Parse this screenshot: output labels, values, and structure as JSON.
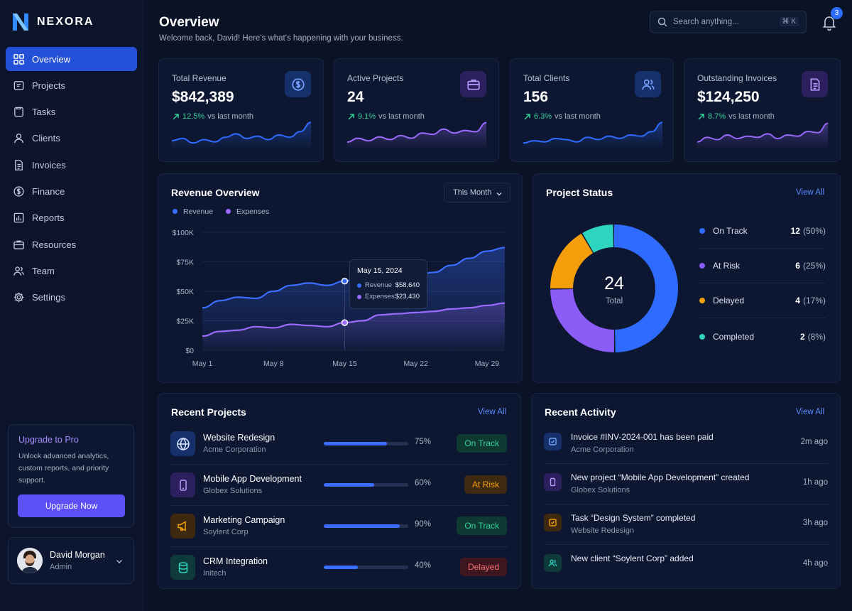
{
  "brand": {
    "name": "NEXORA"
  },
  "nav": [
    {
      "label": "Overview",
      "icon": "grid-icon",
      "active": true
    },
    {
      "label": "Projects",
      "icon": "folder-icon"
    },
    {
      "label": "Tasks",
      "icon": "tasks-icon"
    },
    {
      "label": "Clients",
      "icon": "user-icon"
    },
    {
      "label": "Invoices",
      "icon": "document-icon"
    },
    {
      "label": "Finance",
      "icon": "dollar-icon"
    },
    {
      "label": "Reports",
      "icon": "bar-chart-icon"
    },
    {
      "label": "Resources",
      "icon": "briefcase-icon"
    },
    {
      "label": "Team",
      "icon": "users-icon"
    },
    {
      "label": "Settings",
      "icon": "gear-icon"
    }
  ],
  "upgrade": {
    "title": "Upgrade to Pro",
    "text": "Unlock advanced analytics, custom reports, and priority support.",
    "button": "Upgrade Now"
  },
  "user": {
    "name": "David Morgan",
    "role": "Admin"
  },
  "header": {
    "title": "Overview",
    "subtitle": "Welcome back, David! Here's what's happening with your business.",
    "search_placeholder": "Search anything...",
    "search_shortcut": "⌘ K",
    "notification_count": "3"
  },
  "stats": [
    {
      "label": "Total Revenue",
      "value": "$842,389",
      "delta": "12.5%",
      "delta_text": "vs last month",
      "icon": "dollar-icon",
      "color": "#2f6bff",
      "spark": [
        14,
        16,
        12,
        15,
        13,
        17,
        20,
        16,
        18,
        15,
        19,
        17,
        22,
        30
      ]
    },
    {
      "label": "Active Projects",
      "value": "24",
      "delta": "9.1%",
      "delta_text": "vs last month",
      "icon": "briefcase-icon",
      "color": "#9b6bff",
      "spark": [
        12,
        15,
        13,
        16,
        14,
        17,
        15,
        19,
        18,
        22,
        19,
        21,
        20,
        27
      ]
    },
    {
      "label": "Total Clients",
      "value": "156",
      "delta": "6.3%",
      "delta_text": "vs last month",
      "icon": "users-icon",
      "color": "#2f6bff",
      "spark": [
        12,
        14,
        13,
        16,
        15,
        13,
        17,
        15,
        18,
        16,
        19,
        18,
        22,
        30
      ]
    },
    {
      "label": "Outstanding Invoices",
      "value": "$124,250",
      "delta": "8.7%",
      "delta_text": "vs last month",
      "icon": "document-icon",
      "color": "#9b6bff",
      "spark": [
        14,
        18,
        16,
        20,
        17,
        19,
        18,
        21,
        17,
        20,
        19,
        23,
        22,
        30
      ]
    }
  ],
  "revenue": {
    "title": "Revenue Overview",
    "range": "This Month",
    "legend": [
      "Revenue",
      "Expenses"
    ],
    "tooltip": {
      "date": "May 15, 2024",
      "revenue_label": "Revenue",
      "revenue": "$58,640",
      "expenses_label": "Expenses",
      "expenses": "$23,430"
    }
  },
  "chart_data": {
    "type": "area",
    "x": [
      "May 1",
      "May 3",
      "May 5",
      "May 7",
      "May 8",
      "May 10",
      "May 12",
      "May 14",
      "May 15",
      "May 17",
      "May 19",
      "May 21",
      "May 22",
      "May 24",
      "May 26",
      "May 28",
      "May 29",
      "May 31"
    ],
    "x_ticks": [
      "May 1",
      "May 8",
      "May 15",
      "May 22",
      "May 29"
    ],
    "y_ticks": [
      "$0",
      "$25K",
      "$50K",
      "$75K",
      "$100K"
    ],
    "ylim": [
      0,
      100000
    ],
    "series": [
      {
        "name": "Revenue",
        "color": "#3b6dff",
        "values": [
          36000,
          42000,
          45000,
          44000,
          50000,
          55000,
          57000,
          55000,
          58640,
          63000,
          62000,
          61000,
          64000,
          66000,
          72000,
          78000,
          84000,
          87000
        ]
      },
      {
        "name": "Expenses",
        "color": "#9b6bff",
        "values": [
          12000,
          16000,
          17000,
          20000,
          19000,
          22000,
          21000,
          20000,
          23430,
          25000,
          30000,
          31000,
          32000,
          33000,
          35000,
          36000,
          38000,
          40000
        ]
      }
    ]
  },
  "project_status": {
    "title": "Project Status",
    "view_all": "View All",
    "total": "24",
    "total_label": "Total",
    "items": [
      {
        "label": "On Track",
        "count": "12",
        "pct": "(50%)",
        "value": 12,
        "color": "#2f6bff"
      },
      {
        "label": "At Risk",
        "count": "6",
        "pct": "(25%)",
        "value": 6,
        "color": "#8b5cf6"
      },
      {
        "label": "Delayed",
        "count": "4",
        "pct": "(17%)",
        "value": 4,
        "color": "#f59e0b"
      },
      {
        "label": "Completed",
        "count": "2",
        "pct": "(8%)",
        "value": 2,
        "color": "#2dd4bf"
      }
    ]
  },
  "recent_projects": {
    "title": "Recent Projects",
    "view_all": "View All",
    "items": [
      {
        "name": "Website Redesign",
        "client": "Acme Corporation",
        "progress": 75,
        "progress_label": "75%",
        "status": "On Track",
        "icon": "globe-icon",
        "icon_bg": "#15306b",
        "icon_color": "#dbe6ff",
        "status_bg": "#0f3a33",
        "status_color": "#34d399"
      },
      {
        "name": "Mobile App Development",
        "client": "Globex Solutions",
        "progress": 60,
        "progress_label": "60%",
        "status": "At Risk",
        "icon": "phone-icon",
        "icon_bg": "#2c1f5e",
        "icon_color": "#b69bff",
        "status_bg": "#3d2a10",
        "status_color": "#f59e0b"
      },
      {
        "name": "Marketing Campaign",
        "client": "Soylent Corp",
        "progress": 90,
        "progress_label": "90%",
        "status": "On Track",
        "icon": "megaphone-icon",
        "icon_bg": "#3d2810",
        "icon_color": "#f59e0b",
        "status_bg": "#0f3a33",
        "status_color": "#34d399"
      },
      {
        "name": "CRM Integration",
        "client": "Initech",
        "progress": 40,
        "progress_label": "40%",
        "status": "Delayed",
        "icon": "database-icon",
        "icon_bg": "#0f3a3a",
        "icon_color": "#2dd4bf",
        "status_bg": "#3d1620",
        "status_color": "#f87171"
      }
    ]
  },
  "recent_activity": {
    "title": "Recent Activity",
    "view_all": "View All",
    "items": [
      {
        "text": "Invoice #INV-2024-001 has been paid",
        "sub": "Acme Corporation",
        "time": "2m ago",
        "icon": "invoice-icon",
        "icon_bg": "#15306b",
        "icon_color": "#7aa2ff"
      },
      {
        "text": "New project “Mobile App Development” created",
        "sub": "Globex Solutions",
        "time": "1h ago",
        "icon": "phone-icon",
        "icon_bg": "#2c1f5e",
        "icon_color": "#b69bff"
      },
      {
        "text": "Task “Design System” completed",
        "sub": "Website Redesign",
        "time": "3h ago",
        "icon": "check-square-icon",
        "icon_bg": "#3d2810",
        "icon_color": "#f59e0b"
      },
      {
        "text": "New client “Soylent Corp” added",
        "sub": "",
        "time": "4h ago",
        "icon": "users-icon",
        "icon_bg": "#0f3a3a",
        "icon_color": "#2dd4bf"
      }
    ]
  }
}
